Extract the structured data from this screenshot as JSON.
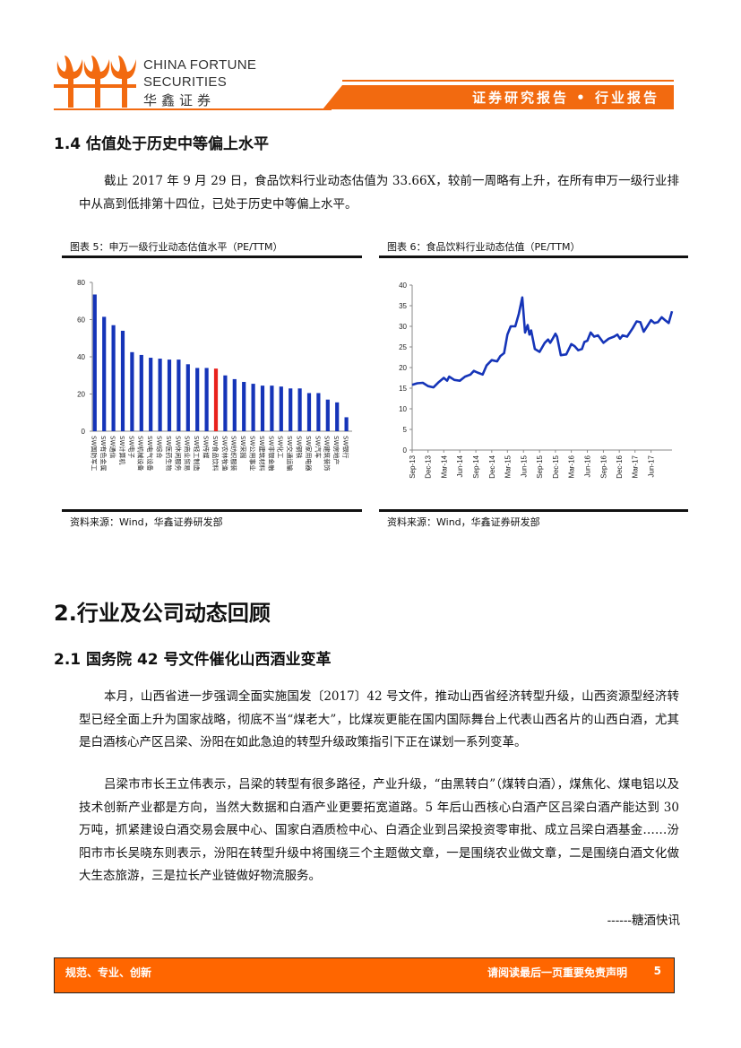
{
  "header": {
    "logo_en_1": "CHINA FORTUNE",
    "logo_en_2": "SECURITIES",
    "logo_cn": "华鑫证券",
    "banner": "证券研究报告 • 行业报告",
    "brand_color": "#f26a10"
  },
  "section_1_4": {
    "title": "1.4 估值处于历史中等偏上水平",
    "para": "截止 2017 年 9 月 29 日，食品饮料行业动态估值为 33.66X，较前一周略有上升，在所有申万一级行业排中从高到低排第十四位，已处于历史中等偏上水平。"
  },
  "fig5": {
    "title": "图表 5：申万一级行业动态估值水平（PE/TTM）",
    "source": "资料来源：Wind，华鑫证券研发部"
  },
  "fig6": {
    "title": "图表 6：食品饮料行业动态估值（PE/TTM）",
    "source": "资料来源：Wind，华鑫证券研发部"
  },
  "chart_data": [
    {
      "type": "bar",
      "ylim": [
        0,
        80
      ],
      "yticks": [
        0,
        20,
        40,
        60,
        80
      ],
      "grid": false,
      "highlight_color": "#e8211d",
      "bar_color": "#1534b8",
      "highlight": "SW食品饮料",
      "categories": [
        "SW国防军工",
        "SW有色金属",
        "SW通信",
        "SW计算机",
        "SW电子",
        "SW机械设备",
        "SW电气设备",
        "SW综合",
        "SW医药生物",
        "SW休闲服务",
        "SW商业贸易",
        "SW轻工制造",
        "SW传媒",
        "SW食品饮料",
        "SW农林牧渔",
        "SW纺织服装",
        "SW采掘",
        "SW公用事业",
        "SW建筑材料",
        "SW非银金融",
        "SW化工",
        "SW交通运输",
        "SW钢铁",
        "SW家用电器",
        "SW汽车",
        "SW建筑装饰",
        "SW房地产",
        "SW银行"
      ],
      "values": [
        73.5,
        61.5,
        57,
        54,
        42.5,
        41,
        39.5,
        39,
        38.5,
        38.5,
        36,
        34,
        34,
        33.66,
        30,
        28,
        26.5,
        25.5,
        24.5,
        24.5,
        24,
        23,
        23,
        20.5,
        20.5,
        17,
        15.5,
        7.5
      ]
    },
    {
      "type": "line",
      "ylim": [
        0,
        40
      ],
      "yticks": [
        0,
        5,
        10,
        15,
        20,
        25,
        30,
        35,
        40
      ],
      "grid": false,
      "line_color": "#1534b8",
      "xticks": [
        "Sep-13",
        "Dec-13",
        "Mar-14",
        "Jun-14",
        "Sep-14",
        "Dec-14",
        "Mar-15",
        "Jun-15",
        "Sep-15",
        "Dec-15",
        "Mar-16",
        "Jun-16",
        "Sep-16",
        "Dec-16",
        "Mar-17",
        "Jun-17"
      ],
      "points": [
        [
          "2013-09-01",
          15.8
        ],
        [
          "2013-10-01",
          16.2
        ],
        [
          "2013-11-01",
          16.3
        ],
        [
          "2013-12-01",
          15.5
        ],
        [
          "2014-01-01",
          15.2
        ],
        [
          "2014-02-01",
          16.5
        ],
        [
          "2014-03-01",
          17.5
        ],
        [
          "2014-03-20",
          16.8
        ],
        [
          "2014-04-01",
          17.8
        ],
        [
          "2014-05-01",
          17.0
        ],
        [
          "2014-06-01",
          16.8
        ],
        [
          "2014-07-01",
          17.8
        ],
        [
          "2014-08-01",
          18.3
        ],
        [
          "2014-08-20",
          19.2
        ],
        [
          "2014-09-10",
          18.8
        ],
        [
          "2014-10-10",
          18.3
        ],
        [
          "2014-11-01",
          20.5
        ],
        [
          "2014-12-01",
          21.8
        ],
        [
          "2015-01-01",
          21.5
        ],
        [
          "2015-01-20",
          22.8
        ],
        [
          "2015-02-10",
          23.5
        ],
        [
          "2015-03-01",
          28
        ],
        [
          "2015-03-20",
          30
        ],
        [
          "2015-04-15",
          30
        ],
        [
          "2015-05-05",
          33
        ],
        [
          "2015-05-25",
          37
        ],
        [
          "2015-06-10",
          28.5
        ],
        [
          "2015-06-25",
          30.3
        ],
        [
          "2015-07-05",
          28
        ],
        [
          "2015-07-15",
          29
        ],
        [
          "2015-08-05",
          24.5
        ],
        [
          "2015-09-01",
          23.8
        ],
        [
          "2015-10-01",
          26
        ],
        [
          "2015-10-20",
          26.8
        ],
        [
          "2015-11-01",
          26
        ],
        [
          "2015-11-15",
          27
        ],
        [
          "2015-12-01",
          28.2
        ],
        [
          "2015-12-10",
          27.5
        ],
        [
          "2016-01-01",
          23
        ],
        [
          "2016-02-01",
          23.2
        ],
        [
          "2016-03-01",
          25.7
        ],
        [
          "2016-03-20",
          25.2
        ],
        [
          "2016-04-10",
          24.2
        ],
        [
          "2016-05-01",
          24.5
        ],
        [
          "2016-05-15",
          26.2
        ],
        [
          "2016-06-01",
          26.5
        ],
        [
          "2016-06-20",
          28.5
        ],
        [
          "2016-07-10",
          27.5
        ],
        [
          "2016-08-01",
          27.8
        ],
        [
          "2016-09-01",
          26
        ],
        [
          "2016-10-01",
          27
        ],
        [
          "2016-11-01",
          27.5
        ],
        [
          "2016-11-20",
          28
        ],
        [
          "2016-12-05",
          27
        ],
        [
          "2016-12-20",
          27.8
        ],
        [
          "2017-01-15",
          27.5
        ],
        [
          "2017-02-15",
          29.5
        ],
        [
          "2017-03-10",
          31.2
        ],
        [
          "2017-04-01",
          31
        ],
        [
          "2017-04-20",
          28.7
        ],
        [
          "2017-05-10",
          30
        ],
        [
          "2017-06-01",
          31.5
        ],
        [
          "2017-06-20",
          30.8
        ],
        [
          "2017-07-10",
          31
        ],
        [
          "2017-08-01",
          32.2
        ],
        [
          "2017-08-20",
          31.5
        ],
        [
          "2017-09-10",
          30.8
        ],
        [
          "2017-09-29",
          33.66
        ]
      ]
    }
  ],
  "section_2": {
    "title": "2.行业及公司动态回顾"
  },
  "section_2_1": {
    "title": "2.1 国务院 42 号文件催化山西酒业变革",
    "para1": "本月，山西省进一步强调全面实施国发〔2017〕42 号文件，推动山西省经济转型升级，山西资源型经济转型已经全面上升为国家战略，彻底不当“煤老大”，比煤炭更能在国内国际舞台上代表山西名片的山西白酒，尤其是白酒核心产区吕梁、汾阳在如此急迫的转型升级政策指引下正在谋划一系列变革。",
    "para2": "吕梁市市长王立伟表示，吕梁的转型有很多路径，产业升级，“由黑转白”（煤转白酒），煤焦化、煤电铝以及技术创新产业都是方向，当然大数据和白酒产业更要拓宽道路。5 年后山西核心白酒产区吕梁白酒产能达到 30 万吨，抓紧建设白酒交易会展中心、国家白酒质检中心、白酒企业到吕梁投资零审批、成立吕梁白酒基金……汾阳市市长吴晓东则表示，汾阳在转型升级中将围绕三个主题做文章，一是围绕农业做文章，二是围绕白酒文化做大生态旅游，三是拉长产业链做好物流服务。",
    "signature": "------糖酒快讯"
  },
  "footer": {
    "left": "规范、专业、创新",
    "right": "请阅读最后一页重要免责声明",
    "page": "5"
  }
}
